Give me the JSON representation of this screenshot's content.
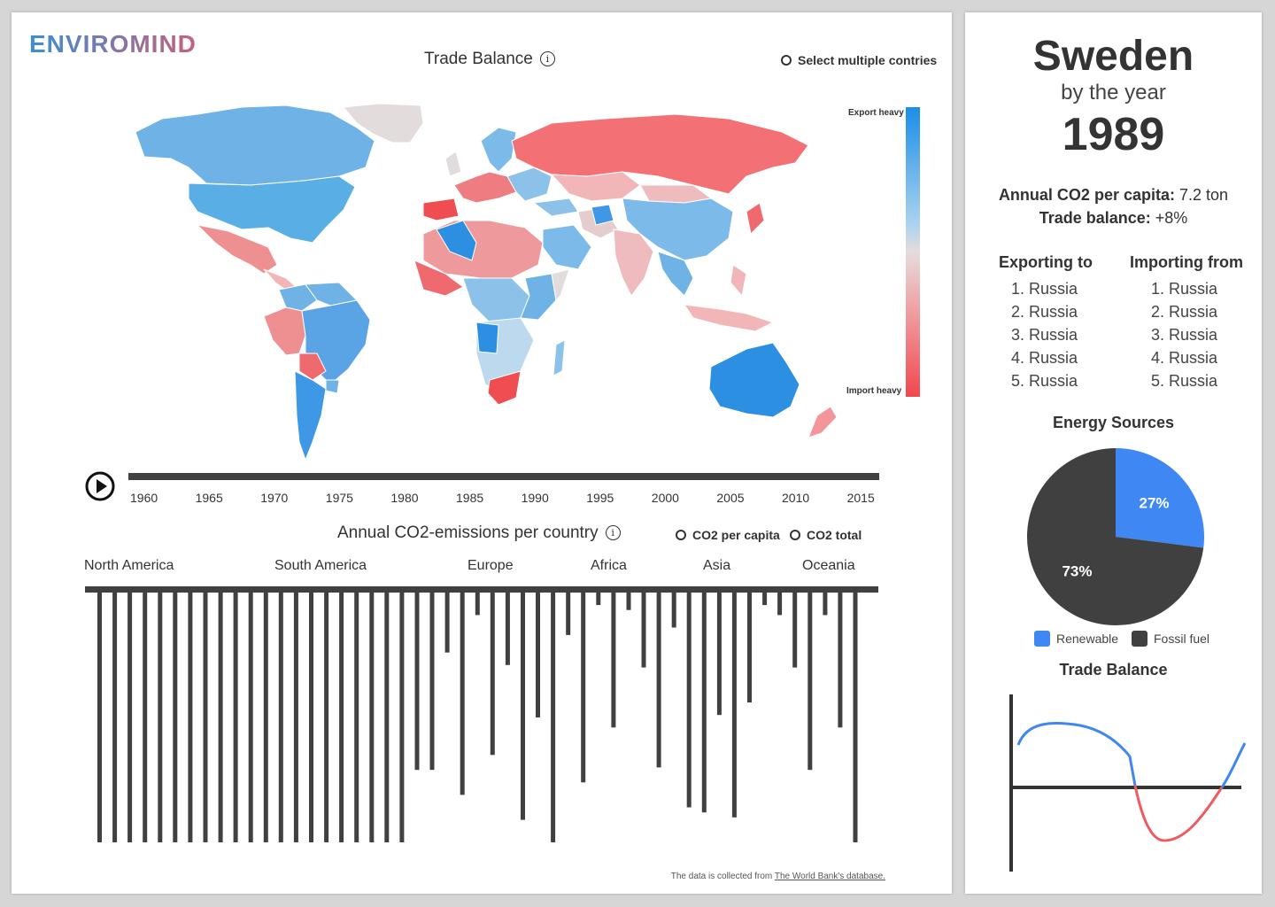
{
  "app": {
    "logo": "ENVIROMIND"
  },
  "map_section": {
    "title": "Trade Balance",
    "select_multiple_label": "Select multiple contries",
    "legend": {
      "top_label": "Export heavy",
      "bottom_label": "Import heavy",
      "top_color": "#1a8ee8",
      "bottom_color": "#f0484e"
    }
  },
  "timeline": {
    "years": [
      "1960",
      "1965",
      "1970",
      "1975",
      "1980",
      "1985",
      "1990",
      "1995",
      "2000",
      "2005",
      "2010",
      "2015"
    ]
  },
  "emissions": {
    "title": "Annual CO2-emissions per country",
    "option_per_capita": "CO2 per capita",
    "option_total": "CO2 total",
    "regions": [
      "North America",
      "South America",
      "Europe",
      "Africa",
      "Asia",
      "Oceania"
    ],
    "bar_color": "#404040",
    "relative_values": [
      1,
      1,
      1,
      1,
      1,
      1,
      1,
      1,
      1,
      1,
      1,
      1,
      1,
      1,
      1,
      1,
      1,
      1,
      1,
      1,
      1,
      0.71,
      0.71,
      0.24,
      0.81,
      0.09,
      0.65,
      0.29,
      0.91,
      0.5,
      1,
      0.17,
      0.76,
      0.05,
      0.54,
      0.07,
      0.3,
      0.7,
      0.14,
      0.86,
      0.88,
      0.49,
      0.9,
      0.44,
      0.05,
      0.09,
      0.3,
      0.71,
      0.09,
      0.54,
      1
    ]
  },
  "footer": {
    "text": "The data is collected from",
    "link": "The World Bank's database."
  },
  "detail": {
    "country": "Sweden",
    "by_the_year": "by the year",
    "year": "1989",
    "co2_label": "Annual CO2 per capita:",
    "co2_value": "7.2 ton",
    "trade_label": "Trade balance:",
    "trade_value": "+8%",
    "exporting_title": "Exporting to",
    "importing_title": "Importing from",
    "exporting": [
      "1. Russia",
      "2. Russia",
      "3. Russia",
      "4. Russia",
      "5. Russia"
    ],
    "importing": [
      "1. Russia",
      "2. Russia",
      "3. Russia",
      "4. Russia",
      "5. Russia"
    ],
    "energy_title": "Energy Sources",
    "energy": [
      {
        "name": "Renewable",
        "percent": 27,
        "label": "27%",
        "color": "#3f87f2"
      },
      {
        "name": "Fossil fuel",
        "percent": 73,
        "label": "73%",
        "color": "#404040"
      }
    ],
    "trade_chart_title": "Trade Balance",
    "trade_chart_colors": {
      "positive": "#3f87f2",
      "negative": "#ef5a5f"
    }
  }
}
